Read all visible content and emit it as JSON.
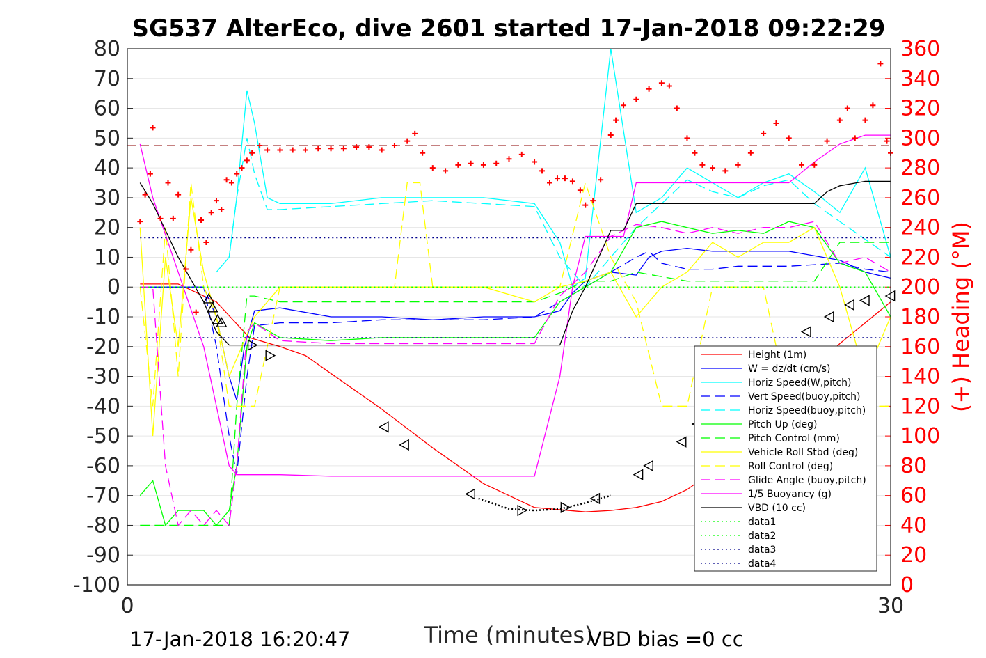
{
  "chart_data": {
    "type": "line",
    "title": "SG537 AlterEco, dive 2601 started 17-Jan-2018 09:22:29",
    "xlabel": "Time (minutes)",
    "ylabel_right": "(+) Heading (°M)",
    "xlim": [
      0,
      30
    ],
    "ylim": [
      -100,
      80
    ],
    "ylim_right": [
      0,
      360
    ],
    "xticks": [
      "0",
      "30"
    ],
    "yticks": [
      "80",
      "70",
      "60",
      "50",
      "40",
      "30",
      "20",
      "10",
      "0",
      "-10",
      "-20",
      "-30",
      "-40",
      "-50",
      "-60",
      "-70",
      "-80",
      "-90",
      "-100"
    ],
    "yticks_right": [
      "360",
      "340",
      "320",
      "300",
      "280",
      "260",
      "240",
      "220",
      "200",
      "180",
      "160",
      "140",
      "120",
      "100",
      "80",
      "60",
      "40",
      "20",
      "0"
    ],
    "footer_left": "17-Jan-2018 16:20:47",
    "footer_right": "VBD bias =0 cc",
    "legend_position": "lower-right",
    "colors": {
      "red": "#ff0000",
      "blue": "#0000ff",
      "cyan": "#00ffff",
      "green": "#00ff00",
      "yellow": "#ffff00",
      "magenta": "#ff00ff",
      "black": "#000000",
      "darkred": "#8b0000",
      "navy": "#00008b"
    },
    "series": [
      {
        "name": "Height (1m)",
        "color": "#ff0000",
        "style": "solid",
        "x": [
          0.5,
          2,
          3.5,
          4.8,
          6,
          7,
          8,
          10,
          12,
          14,
          16,
          18,
          19,
          20,
          21,
          22,
          23,
          24,
          25,
          26,
          27,
          28,
          29,
          30
        ],
        "y": [
          1,
          1,
          -5,
          -17,
          -20,
          -23,
          -29,
          -41,
          -54,
          -66,
          -74,
          -75.5,
          -75,
          -74,
          -72,
          -68,
          -62,
          -53,
          -44,
          -36,
          -27,
          -19,
          -12,
          -5
        ]
      },
      {
        "name": "W = dz/dt (cm/s)",
        "color": "#0000ff",
        "style": "solid",
        "x": [
          0.5,
          2,
          3,
          3.5,
          4,
          4.3,
          4.6,
          5,
          6,
          8,
          10,
          12,
          14,
          16,
          17,
          17.5,
          18,
          19,
          20,
          20.5,
          21,
          22,
          23,
          24,
          26,
          28,
          29,
          30
        ],
        "y": [
          0,
          0,
          0,
          -10,
          -30,
          -38,
          -20,
          -8,
          -7,
          -10,
          -10,
          -11,
          -10,
          -10,
          -8,
          -2,
          2,
          5,
          4,
          10,
          12,
          13,
          12,
          12,
          12,
          9,
          5,
          3
        ]
      },
      {
        "name": "Horiz Speed(W,pitch)",
        "color": "#00ffff",
        "style": "solid",
        "x": [
          3.5,
          4,
          4.3,
          4.7,
          5,
          5.5,
          6,
          8,
          10,
          12,
          14,
          16,
          17,
          17.5,
          18,
          19,
          20,
          21,
          22,
          23,
          24,
          25,
          26,
          27,
          28,
          29,
          30
        ],
        "y": [
          5,
          10,
          30,
          66,
          55,
          30,
          28,
          28,
          30,
          30,
          30,
          28,
          15,
          0,
          3,
          80,
          25,
          30,
          40,
          35,
          30,
          35,
          38,
          32,
          25,
          40,
          10
        ]
      },
      {
        "name": "Vert Speed(buoy,pitch)",
        "color": "#0000ff",
        "style": "dashed",
        "x": [
          0.5,
          2,
          3,
          3.5,
          4,
          4.3,
          4.7,
          5,
          6,
          8,
          10,
          12,
          14,
          16,
          17,
          18,
          19,
          20,
          20.5,
          21,
          22,
          23,
          24,
          26,
          28,
          29,
          30
        ],
        "y": [
          0,
          0,
          0,
          -20,
          -50,
          -63,
          -30,
          -13,
          -12,
          -12,
          -11,
          -11,
          -11,
          -10,
          -5,
          0,
          5,
          10,
          12,
          8,
          6,
          6,
          7,
          7,
          8,
          6,
          5
        ]
      },
      {
        "name": "Horiz Speed(buoy,pitch)",
        "color": "#00ffff",
        "style": "dashed",
        "x": [
          4,
          4.3,
          4.7,
          5,
          5.5,
          6,
          8,
          10,
          12,
          14,
          16,
          17,
          18,
          19,
          20,
          21,
          22,
          23,
          24,
          25,
          26,
          27,
          28,
          30
        ],
        "y": [
          10,
          30,
          50,
          38,
          26,
          26,
          27,
          28,
          29,
          28,
          27,
          10,
          0,
          10,
          20,
          28,
          36,
          32,
          30,
          34,
          36,
          28,
          22,
          10
        ]
      },
      {
        "name": "Pitch Up (deg)",
        "color": "#00ff00",
        "style": "solid",
        "x": [
          0.5,
          1,
          1.5,
          2,
          3,
          3.5,
          4,
          4.3,
          4.7,
          5,
          6,
          8,
          10,
          12,
          14,
          16,
          17,
          18,
          19,
          20,
          21,
          22,
          23,
          24,
          25,
          26,
          27,
          28,
          29,
          30
        ],
        "y": [
          -70,
          -65,
          -80,
          -75,
          -75,
          -80,
          -75,
          -60,
          -20,
          -12,
          -17,
          -18,
          -17,
          -17,
          -17,
          -17,
          -5,
          0,
          5,
          20,
          22,
          20,
          18,
          19,
          18,
          22,
          20,
          8,
          5,
          -10
        ]
      },
      {
        "name": "Pitch Control (mm)",
        "color": "#00ff00",
        "style": "dashed",
        "x": [
          0.5,
          3.5,
          4,
          4.3,
          4.7,
          5,
          6,
          8,
          10,
          12,
          14,
          16,
          17,
          18,
          19,
          20,
          22,
          24,
          26,
          27,
          28,
          29,
          30
        ],
        "y": [
          -80,
          -80,
          -80,
          -40,
          -3,
          -3,
          -5,
          -5,
          -5,
          -5,
          -5,
          -5,
          -2,
          2,
          2,
          5,
          2,
          2,
          2,
          2,
          15,
          15,
          15
        ]
      },
      {
        "name": "Vehicle Roll Stbd (deg)",
        "color": "#ffff00",
        "style": "solid",
        "x": [
          0.5,
          1,
          1.5,
          2,
          2.5,
          3,
          3.5,
          4,
          4.5,
          5,
          6,
          8,
          10,
          12,
          14,
          16,
          17,
          18,
          19,
          20,
          21,
          22,
          23,
          24,
          25,
          26,
          27,
          28,
          29,
          30
        ],
        "y": [
          20,
          -50,
          10,
          -20,
          30,
          5,
          -10,
          -30,
          -20,
          -10,
          0,
          0,
          0,
          0,
          0,
          -5,
          0,
          2,
          5,
          -10,
          0,
          5,
          15,
          10,
          15,
          15,
          20,
          0,
          -30,
          -10
        ]
      },
      {
        "name": "Roll Control (deg)",
        "color": "#ffff00",
        "style": "dashed",
        "x": [
          0.5,
          1,
          1.5,
          2,
          2.5,
          3,
          3.5,
          4,
          4.3,
          4.7,
          5,
          6,
          8,
          10,
          10.5,
          11,
          11.5,
          12,
          14,
          16,
          17,
          18,
          19,
          20,
          21,
          22,
          23,
          24,
          25,
          26,
          27,
          28,
          29,
          30
        ],
        "y": [
          0,
          -40,
          20,
          -30,
          35,
          0,
          -10,
          -40,
          -40,
          -40,
          -40,
          0,
          0,
          0,
          0,
          35,
          35,
          0,
          0,
          0,
          0,
          35,
          10,
          -5,
          -40,
          -40,
          0,
          0,
          0,
          -40,
          -40,
          -40,
          -40,
          -40
        ]
      },
      {
        "name": "Glide Angle (buoy,pitch)",
        "color": "#ff00ff",
        "style": "dashed",
        "x": [
          0.5,
          1,
          1.5,
          2,
          2.5,
          3,
          3.5,
          4,
          4.3,
          4.7,
          5,
          6,
          8,
          10,
          12,
          14,
          16,
          17,
          18,
          19,
          20,
          21,
          22,
          23,
          24,
          25,
          26,
          27,
          28,
          29,
          30
        ],
        "y": [
          0,
          0,
          -60,
          -80,
          -75,
          -80,
          -75,
          -80,
          -60,
          -15,
          -12,
          -18,
          -19,
          -19,
          -19,
          -19,
          -19,
          -3,
          5,
          17,
          21,
          20,
          18,
          20,
          18,
          20,
          20,
          22,
          8,
          10,
          5
        ]
      },
      {
        "name": "1/5 Buoyancy (g)",
        "color": "#ff00ff",
        "style": "solid",
        "x": [
          0.5,
          1,
          2,
          3,
          3.5,
          4,
          4.3,
          5,
          6,
          8,
          10,
          12,
          14,
          15,
          16,
          17,
          17.5,
          18,
          19,
          19.5,
          20,
          21,
          22,
          23,
          24,
          25,
          26,
          27,
          28,
          29,
          30
        ],
        "y": [
          48,
          30,
          5,
          -20,
          -40,
          -60,
          -63,
          -63,
          -63,
          -63.5,
          -63.5,
          -63.5,
          -63.5,
          -63.5,
          -63.5,
          -30,
          0,
          17,
          17,
          17,
          35,
          35,
          35,
          35,
          35,
          35,
          35,
          42,
          48,
          51,
          51
        ]
      },
      {
        "name": "VBD (10 cc)",
        "color": "#000000",
        "style": "solid",
        "x": [
          0.5,
          1,
          2,
          3,
          3.5,
          4,
          4.3,
          5,
          6,
          8,
          10,
          12,
          14,
          15,
          16,
          17,
          17.5,
          18,
          19,
          19.5,
          20,
          21,
          22,
          23,
          24,
          25,
          26,
          27,
          27.5,
          28,
          29,
          30
        ],
        "y": [
          35,
          28,
          10,
          -5,
          -15,
          -19.5,
          -19.5,
          -19.5,
          -19.5,
          -19.5,
          -19.5,
          -19.5,
          -19.5,
          -19.5,
          -19.5,
          -19.5,
          -8,
          0,
          19,
          19,
          28,
          28,
          28,
          28,
          28,
          28,
          28,
          28,
          32,
          34,
          35.5,
          35.5
        ]
      },
      {
        "name": "data1",
        "color": "#00ff00",
        "style": "dotted",
        "x": [
          0.5,
          30
        ],
        "y": [
          0,
          0
        ]
      },
      {
        "name": "data2",
        "color": "#00ff00",
        "style": "dotted",
        "x": [
          0.5,
          30
        ],
        "y": [
          0,
          0
        ]
      },
      {
        "name": "data3",
        "color": "#00008b",
        "style": "dotted",
        "x": [
          0.5,
          30
        ],
        "y": [
          16.5,
          16.5
        ]
      },
      {
        "name": "data4",
        "color": "#00008b",
        "style": "dotted",
        "x": [
          0.5,
          30
        ],
        "y": [
          -17,
          -17
        ]
      }
    ],
    "heading_reference_deg": 295,
    "heading_points": [
      {
        "x": 0.5,
        "h": 244
      },
      {
        "x": 0.7,
        "h": 262
      },
      {
        "x": 0.9,
        "h": 276
      },
      {
        "x": 1.0,
        "h": 307
      },
      {
        "x": 1.3,
        "h": 246
      },
      {
        "x": 1.6,
        "h": 270
      },
      {
        "x": 1.8,
        "h": 246
      },
      {
        "x": 2.0,
        "h": 262
      },
      {
        "x": 2.3,
        "h": 212
      },
      {
        "x": 2.5,
        "h": 225
      },
      {
        "x": 2.7,
        "h": 183
      },
      {
        "x": 2.9,
        "h": 245
      },
      {
        "x": 3.1,
        "h": 230
      },
      {
        "x": 3.3,
        "h": 250
      },
      {
        "x": 3.5,
        "h": 258
      },
      {
        "x": 3.7,
        "h": 252
      },
      {
        "x": 3.9,
        "h": 272
      },
      {
        "x": 4.1,
        "h": 270
      },
      {
        "x": 4.3,
        "h": 276
      },
      {
        "x": 4.5,
        "h": 280
      },
      {
        "x": 4.7,
        "h": 285
      },
      {
        "x": 4.9,
        "h": 290
      },
      {
        "x": 5.2,
        "h": 295
      },
      {
        "x": 5.5,
        "h": 292
      },
      {
        "x": 6,
        "h": 292
      },
      {
        "x": 6.5,
        "h": 292
      },
      {
        "x": 7,
        "h": 292
      },
      {
        "x": 7.5,
        "h": 293
      },
      {
        "x": 8,
        "h": 293
      },
      {
        "x": 8.5,
        "h": 293
      },
      {
        "x": 9,
        "h": 294
      },
      {
        "x": 9.5,
        "h": 294
      },
      {
        "x": 10,
        "h": 292
      },
      {
        "x": 10.5,
        "h": 295
      },
      {
        "x": 11,
        "h": 298
      },
      {
        "x": 11.3,
        "h": 303
      },
      {
        "x": 11.6,
        "h": 290
      },
      {
        "x": 12,
        "h": 280
      },
      {
        "x": 12.5,
        "h": 278
      },
      {
        "x": 13,
        "h": 282
      },
      {
        "x": 13.5,
        "h": 283
      },
      {
        "x": 14,
        "h": 282
      },
      {
        "x": 14.5,
        "h": 283
      },
      {
        "x": 15,
        "h": 286
      },
      {
        "x": 15.5,
        "h": 289
      },
      {
        "x": 16,
        "h": 284
      },
      {
        "x": 16.3,
        "h": 278
      },
      {
        "x": 16.6,
        "h": 270
      },
      {
        "x": 16.9,
        "h": 273
      },
      {
        "x": 17.2,
        "h": 273
      },
      {
        "x": 17.5,
        "h": 271
      },
      {
        "x": 17.8,
        "h": 265
      },
      {
        "x": 18,
        "h": 255
      },
      {
        "x": 18.3,
        "h": 258
      },
      {
        "x": 18.6,
        "h": 272
      },
      {
        "x": 19,
        "h": 302
      },
      {
        "x": 19.2,
        "h": 312
      },
      {
        "x": 19.5,
        "h": 322
      },
      {
        "x": 20,
        "h": 326
      },
      {
        "x": 20.5,
        "h": 333
      },
      {
        "x": 21,
        "h": 337
      },
      {
        "x": 21.3,
        "h": 335
      },
      {
        "x": 21.6,
        "h": 320
      },
      {
        "x": 22,
        "h": 300
      },
      {
        "x": 22.3,
        "h": 290
      },
      {
        "x": 22.6,
        "h": 282
      },
      {
        "x": 23,
        "h": 280
      },
      {
        "x": 23.5,
        "h": 278
      },
      {
        "x": 24,
        "h": 282
      },
      {
        "x": 24.5,
        "h": 290
      },
      {
        "x": 25,
        "h": 303
      },
      {
        "x": 25.5,
        "h": 310
      },
      {
        "x": 26,
        "h": 300
      },
      {
        "x": 26.5,
        "h": 282
      },
      {
        "x": 27,
        "h": 282
      },
      {
        "x": 27.5,
        "h": 298
      },
      {
        "x": 28,
        "h": 312
      },
      {
        "x": 28.3,
        "h": 320
      },
      {
        "x": 28.6,
        "h": 300
      },
      {
        "x": 29,
        "h": 312
      },
      {
        "x": 29.3,
        "h": 322
      },
      {
        "x": 29.6,
        "h": 350
      },
      {
        "x": 29.85,
        "h": 298
      },
      {
        "x": 30,
        "h": 290
      }
    ],
    "marker_points": [
      {
        "x": 3.2,
        "y": -4,
        "m": "up"
      },
      {
        "x": 3.35,
        "y": -7,
        "m": "up"
      },
      {
        "x": 3.55,
        "y": -11,
        "m": "up"
      },
      {
        "x": 3.7,
        "y": -12,
        "m": "up"
      },
      {
        "x": 4.9,
        "y": -19.5,
        "m": "right"
      },
      {
        "x": 5.6,
        "y": -23,
        "m": "right"
      },
      {
        "x": 10.1,
        "y": -47,
        "m": "left"
      },
      {
        "x": 10.9,
        "y": -53,
        "m": "left"
      },
      {
        "x": 13.5,
        "y": -69.5,
        "m": "left"
      },
      {
        "x": 15.5,
        "y": -75,
        "m": "right"
      },
      {
        "x": 17.2,
        "y": -74,
        "m": "right"
      },
      {
        "x": 18.4,
        "y": -71,
        "m": "left"
      },
      {
        "x": 20.1,
        "y": -63,
        "m": "left"
      },
      {
        "x": 20.5,
        "y": -60,
        "m": "left"
      },
      {
        "x": 21.8,
        "y": -52,
        "m": "left"
      },
      {
        "x": 22.4,
        "y": -46,
        "m": "left"
      },
      {
        "x": 23.3,
        "y": -40,
        "m": "left"
      },
      {
        "x": 24.2,
        "y": -36,
        "m": "left"
      },
      {
        "x": 26.7,
        "y": -15,
        "m": "left"
      },
      {
        "x": 27.6,
        "y": -10,
        "m": "left"
      },
      {
        "x": 28.4,
        "y": -6,
        "m": "left"
      },
      {
        "x": 29.0,
        "y": -4.5,
        "m": "left"
      },
      {
        "x": 30,
        "y": -3,
        "m": "left"
      }
    ]
  }
}
